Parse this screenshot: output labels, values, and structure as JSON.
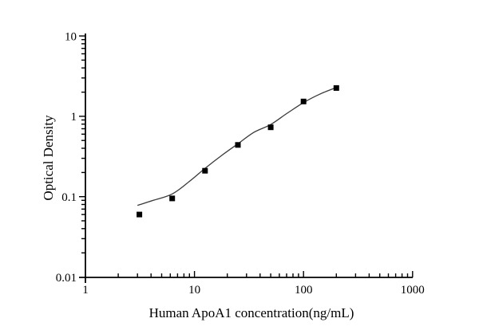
{
  "chart_data": {
    "type": "scatter",
    "title": "",
    "xlabel": "Human ApoA1 concentration(ng/mL)",
    "ylabel": "Optical Density",
    "x_scale": "log",
    "y_scale": "log",
    "xlim": [
      1,
      1000
    ],
    "ylim": [
      0.01,
      10
    ],
    "x_ticks": [
      1,
      10,
      100,
      1000
    ],
    "x_tick_labels": [
      "1",
      "10",
      "100",
      "1000"
    ],
    "y_ticks": [
      0.01,
      0.1,
      1,
      10
    ],
    "y_tick_labels": [
      "0.01",
      "0.1",
      "1",
      "10"
    ],
    "grid": false,
    "legend": "none",
    "series": [
      {
        "name": "standards",
        "marker": "filled-square",
        "color": "#000000",
        "points": [
          {
            "x": 3.125,
            "y": 0.06
          },
          {
            "x": 6.25,
            "y": 0.095
          },
          {
            "x": 12.5,
            "y": 0.21
          },
          {
            "x": 25,
            "y": 0.44
          },
          {
            "x": 50,
            "y": 0.73
          },
          {
            "x": 100,
            "y": 1.53
          },
          {
            "x": 200,
            "y": 2.25
          }
        ]
      }
    ],
    "fit_curve": {
      "name": "fitted-standard-curve",
      "color": "#3a3a3a",
      "points": [
        [
          3.0,
          0.078
        ],
        [
          4.2,
          0.09
        ],
        [
          6.25,
          0.108
        ],
        [
          9,
          0.155
        ],
        [
          12.5,
          0.225
        ],
        [
          18,
          0.33
        ],
        [
          25,
          0.455
        ],
        [
          35,
          0.63
        ],
        [
          50,
          0.79
        ],
        [
          70,
          1.08
        ],
        [
          100,
          1.48
        ],
        [
          140,
          1.88
        ],
        [
          200,
          2.28
        ]
      ]
    }
  }
}
